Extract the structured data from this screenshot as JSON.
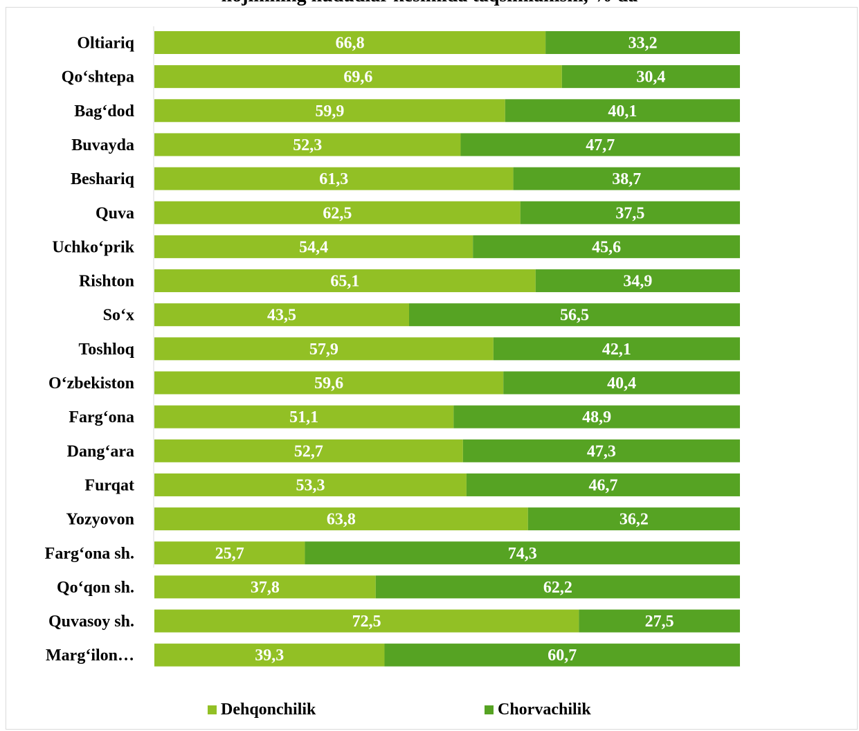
{
  "title": "hojimning hududlar kesimida taqsimlanishi, % da",
  "colors": {
    "dehqonchilik": "#92c025",
    "chorvachilik": "#56a323"
  },
  "legend": {
    "series1": "Dehqonchilik",
    "series2": "Chorvachilik"
  },
  "chart_data": {
    "type": "bar",
    "orientation": "horizontal",
    "stacked": true,
    "title": "hojimning hududlar kesimida taqsimlanishi, % da",
    "xlim": [
      0,
      100
    ],
    "legend_position": "bottom",
    "categories": [
      "Oltiariq",
      "Qo‘shtepa",
      "Bag‘dod",
      "Buvayda",
      "Beshariq",
      "Quva",
      "Uchko‘prik",
      "Rishton",
      "So‘x",
      "Toshloq",
      "O‘zbekiston",
      "Farg‘ona",
      "Dang‘ara",
      "Furqat",
      "Yozyovon",
      "Farg‘ona sh.",
      "Qo‘qon sh.",
      "Quvasoy sh.",
      "Marg‘ilon…"
    ],
    "series": [
      {
        "name": "Dehqonchilik",
        "values": [
          66.8,
          69.6,
          59.9,
          52.3,
          61.3,
          62.5,
          54.4,
          65.1,
          43.5,
          57.9,
          59.6,
          51.1,
          52.7,
          53.3,
          63.8,
          25.7,
          37.8,
          72.5,
          39.3
        ],
        "labels": [
          "66,8",
          "69,6",
          "59,9",
          "52,3",
          "61,3",
          "62,5",
          "54,4",
          "65,1",
          "43,5",
          "57,9",
          "59,6",
          "51,1",
          "52,7",
          "53,3",
          "63,8",
          "25,7",
          "37,8",
          "72,5",
          "39,3"
        ]
      },
      {
        "name": "Chorvachilik",
        "values": [
          33.2,
          30.4,
          40.1,
          47.7,
          38.7,
          37.5,
          45.6,
          34.9,
          56.5,
          42.1,
          40.4,
          48.9,
          47.3,
          46.7,
          36.2,
          74.3,
          62.2,
          27.5,
          60.7
        ],
        "labels": [
          "33,2",
          "30,4",
          "40,1",
          "47,7",
          "38,7",
          "37,5",
          "45,6",
          "34,9",
          "56,5",
          "42,1",
          "40,4",
          "48,9",
          "47,3",
          "46,7",
          "36,2",
          "74,3",
          "62,2",
          "27,5",
          "60,7"
        ]
      }
    ]
  }
}
